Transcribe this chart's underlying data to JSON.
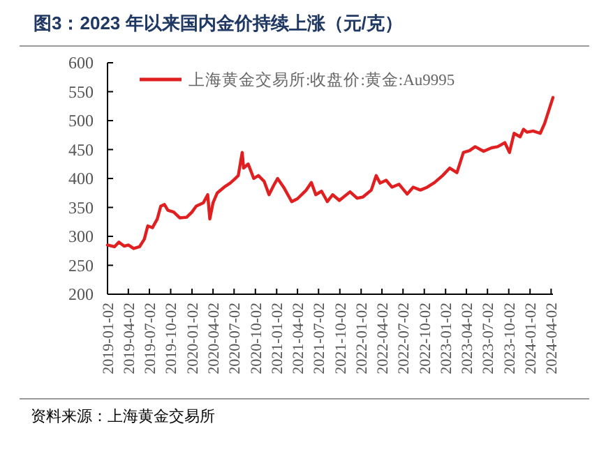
{
  "chart_data": {
    "type": "line",
    "title": "图3：2023 年以来国内金价持续上涨（元/克）",
    "annotations": [
      "资料来源：上海黄金交易所"
    ],
    "legend": "top left",
    "grid": false,
    "ylim": [
      200,
      600
    ],
    "yticks": [
      200,
      250,
      300,
      350,
      400,
      450,
      500,
      550,
      600
    ],
    "xlim": [
      "2019-01-02",
      "2024-04-10"
    ],
    "xticks": [
      {
        "value": "2019-01-02",
        "label": "2019-01-02"
      },
      {
        "value": "2019-04-02",
        "label": "2019-04-02"
      },
      {
        "value": "2019-07-02",
        "label": "2019-07-02"
      },
      {
        "value": "2019-10-02",
        "label": "2019-10-02"
      },
      {
        "value": "2020-01-02",
        "label": "2020-01-02"
      },
      {
        "value": "2020-04-02",
        "label": "2020-04-02"
      },
      {
        "value": "2020-07-02",
        "label": "2020-07-02"
      },
      {
        "value": "2020-10-02",
        "label": "2020-10-02"
      },
      {
        "value": "2021-01-02",
        "label": "2021-01-02"
      },
      {
        "value": "2021-04-02",
        "label": "2021-04-02"
      },
      {
        "value": "2021-07-02",
        "label": "2021-07-02"
      },
      {
        "value": "2021-10-02",
        "label": "2021-10-02"
      },
      {
        "value": "2022-01-02",
        "label": "2022-01-02"
      },
      {
        "value": "2022-04-02",
        "label": "2022-04-02"
      },
      {
        "value": "2022-07-02",
        "label": "2022-07-02"
      },
      {
        "value": "2022-10-02",
        "label": "2022-10-02"
      },
      {
        "value": "2023-01-02",
        "label": "2023-01-02"
      },
      {
        "value": "2023-04-02",
        "label": "2023-04-02"
      },
      {
        "value": "2023-07-02",
        "label": "2023-07-02"
      },
      {
        "value": "2023-10-02",
        "label": "2023-10-02"
      },
      {
        "value": "2024-01-02",
        "label": "2024-01-02"
      },
      {
        "value": "2024-04-02",
        "label": "2024-04-02"
      }
    ],
    "series": [
      {
        "name": "上海黄金交易所:收盘价:黄金:Au9995",
        "color": "#e02020",
        "x": [
          "2019-01-02",
          "2019-02-01",
          "2019-02-20",
          "2019-03-15",
          "2019-04-02",
          "2019-04-25",
          "2019-05-20",
          "2019-06-10",
          "2019-06-25",
          "2019-07-15",
          "2019-08-05",
          "2019-08-20",
          "2019-09-05",
          "2019-09-20",
          "2019-10-15",
          "2019-11-10",
          "2019-12-10",
          "2020-01-02",
          "2020-01-20",
          "2020-02-20",
          "2020-03-10",
          "2020-03-19",
          "2020-04-02",
          "2020-04-20",
          "2020-05-20",
          "2020-06-15",
          "2020-07-02",
          "2020-07-20",
          "2020-08-06",
          "2020-08-12",
          "2020-09-01",
          "2020-09-25",
          "2020-10-15",
          "2020-11-09",
          "2020-11-30",
          "2020-12-20",
          "2021-01-06",
          "2021-02-01",
          "2021-03-08",
          "2021-04-02",
          "2021-05-10",
          "2021-06-01",
          "2021-06-20",
          "2021-07-15",
          "2021-08-09",
          "2021-09-01",
          "2021-09-30",
          "2021-11-15",
          "2021-12-15",
          "2022-01-10",
          "2022-02-15",
          "2022-03-08",
          "2022-03-25",
          "2022-04-20",
          "2022-05-15",
          "2022-06-15",
          "2022-07-20",
          "2022-08-15",
          "2022-09-15",
          "2022-10-15",
          "2022-11-15",
          "2022-12-20",
          "2023-01-20",
          "2023-02-20",
          "2023-03-20",
          "2023-04-15",
          "2023-05-10",
          "2023-06-15",
          "2023-07-20",
          "2023-08-15",
          "2023-09-15",
          "2023-10-05",
          "2023-10-25",
          "2023-11-20",
          "2023-12-05",
          "2023-12-20",
          "2024-01-15",
          "2024-02-15",
          "2024-03-05",
          "2024-03-25",
          "2024-04-10"
        ],
        "values": [
          285,
          282,
          290,
          283,
          285,
          279,
          282,
          295,
          318,
          315,
          330,
          352,
          355,
          345,
          342,
          332,
          333,
          342,
          352,
          358,
          372,
          330,
          358,
          375,
          385,
          392,
          398,
          405,
          445,
          418,
          425,
          400,
          405,
          395,
          372,
          388,
          400,
          385,
          360,
          365,
          380,
          393,
          372,
          378,
          360,
          372,
          362,
          377,
          366,
          368,
          380,
          405,
          392,
          397,
          385,
          390,
          373,
          385,
          380,
          385,
          393,
          405,
          418,
          410,
          445,
          448,
          455,
          447,
          453,
          455,
          462,
          445,
          478,
          472,
          485,
          480,
          482,
          478,
          495,
          520,
          540
        ]
      }
    ]
  }
}
